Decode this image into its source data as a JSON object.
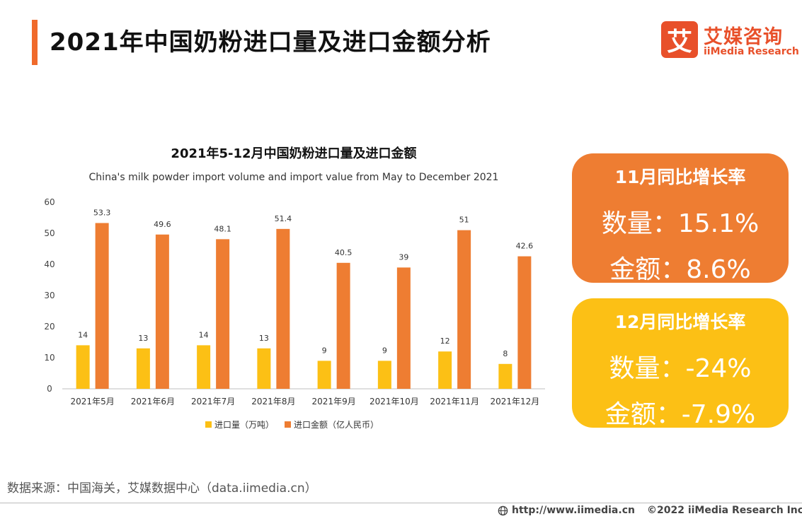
{
  "page": {
    "title": "2021年中国奶粉进口量及进口金额分析",
    "source": "数据来源：中国海关，艾媒数据中心（data.iimedia.cn）",
    "footer_url": "http://www.iimedia.cn",
    "footer_copyright": "©2022  iiMedia Research  Inc"
  },
  "logo": {
    "mark": "艾",
    "name_cn": "艾媒咨询",
    "name_en": "iiMedia Research"
  },
  "colors": {
    "accent": "#f06a2b",
    "volume": "#fcc015",
    "value": "#ee7d32"
  },
  "cards": [
    {
      "heading": "11月同比增长率",
      "volume_line": "数量：15.1%",
      "value_line": "金额：8.6%"
    },
    {
      "heading": "12月同比增长率",
      "volume_line": "数量：-24%",
      "value_line": "金额：-7.9%"
    }
  ],
  "chart_data": {
    "type": "bar",
    "title": "2021年5-12月中国奶粉进口量及进口金额",
    "subtitle": "China's milk powder import volume and import value from May to December 2021",
    "categories": [
      "2021年5月",
      "2021年6月",
      "2021年7月",
      "2021年8月",
      "2021年9月",
      "2021年10月",
      "2021年11月",
      "2021年12月"
    ],
    "series": [
      {
        "name": "进口量（万吨）",
        "values": [
          14,
          13,
          14,
          13,
          9,
          9,
          12,
          8
        ],
        "labels": [
          "14",
          "13",
          "14",
          "13",
          "9",
          "9",
          "12",
          "8"
        ]
      },
      {
        "name": "进口金额（亿人民币）",
        "values": [
          53.3,
          49.6,
          48.1,
          51.4,
          40.5,
          39,
          51,
          42.6
        ],
        "labels": [
          "53.3",
          "49.6",
          "48.1",
          "51.4",
          "40.5",
          "39",
          "51",
          "42.6"
        ]
      }
    ],
    "ylim": [
      0,
      60
    ],
    "yticks": [
      "0",
      "10",
      "20",
      "30",
      "40",
      "50",
      "60"
    ],
    "xlabel": "",
    "ylabel": "",
    "grid": false,
    "legend": "bottom"
  }
}
